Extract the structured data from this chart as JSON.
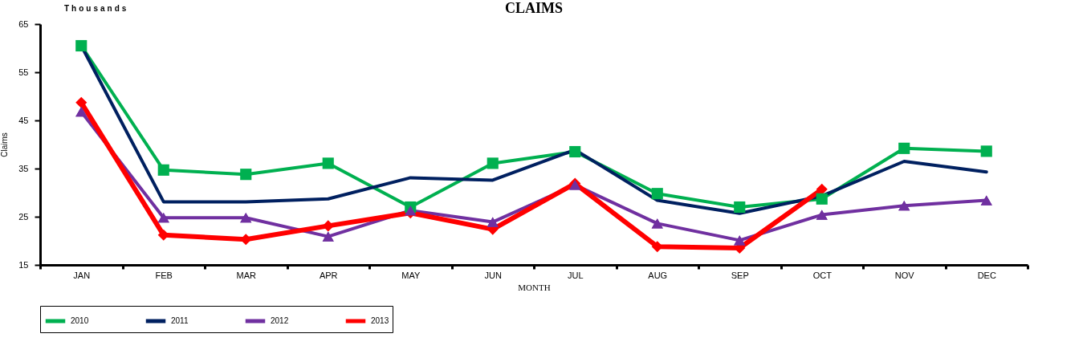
{
  "chart_data": {
    "type": "line",
    "title": "CLAIMS",
    "xlabel": "MONTH",
    "ylabel": "Claims",
    "annotations": [
      "Thousands"
    ],
    "categories": [
      "JAN",
      "FEB",
      "MAR",
      "APR",
      "MAY",
      "JUN",
      "JUL",
      "AUG",
      "SEP",
      "OCT",
      "NOV",
      "DEC"
    ],
    "series": [
      {
        "name": "2010",
        "color": "#00b050",
        "marker": "square",
        "values": [
          60.5,
          34.7,
          33.8,
          36.1,
          27.0,
          36.1,
          38.5,
          29.8,
          27.0,
          28.7,
          39.2,
          38.6
        ]
      },
      {
        "name": "2011",
        "color": "#002060",
        "marker": "none",
        "values": [
          60.5,
          28.1,
          28.1,
          28.7,
          33.1,
          32.6,
          38.9,
          28.4,
          25.7,
          29.3,
          36.5,
          34.3
        ]
      },
      {
        "name": "2012",
        "color": "#7030a0",
        "marker": "triangle",
        "values": [
          46.8,
          24.8,
          24.8,
          20.9,
          26.3,
          23.9,
          31.6,
          23.6,
          20.1,
          25.4,
          27.3,
          28.4
        ]
      },
      {
        "name": "2013",
        "color": "#ff0000",
        "marker": "diamond",
        "values": [
          48.7,
          21.2,
          20.3,
          23.1,
          25.8,
          22.4,
          31.9,
          18.8,
          18.5,
          30.7,
          null,
          null
        ]
      }
    ],
    "ylim": [
      15,
      65
    ],
    "yticks": [
      15,
      25,
      35,
      45,
      55,
      65
    ],
    "legend": "bottom",
    "grid": false,
    "line_style": "solid"
  }
}
